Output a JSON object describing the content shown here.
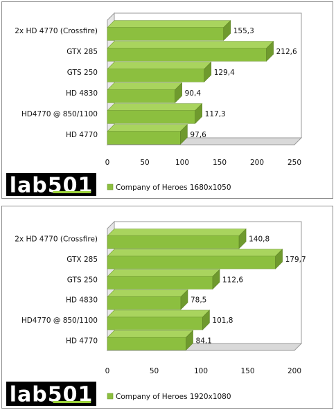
{
  "logo_text": "lab501",
  "chart_data": [
    {
      "type": "bar",
      "orientation": "horizontal",
      "categories": [
        "2x HD 4770 (Crossfire)",
        "GTX 285",
        "GTS 250",
        "HD 4830",
        "HD4770 @ 850/1100",
        "HD 4770"
      ],
      "series": [
        {
          "name": "Company of Heroes 1680x1050",
          "values": [
            155.3,
            212.6,
            129.4,
            90.4,
            117.3,
            97.6
          ],
          "value_labels": [
            "155,3",
            "212,6",
            "129,4",
            "90,4",
            "117,3",
            "97,6"
          ]
        }
      ],
      "xlim": [
        0,
        250
      ],
      "ticks": [
        0,
        50,
        100,
        150,
        200,
        250
      ],
      "grid": false,
      "legend_position": "bottom",
      "bar_color": "#8cbf3f"
    },
    {
      "type": "bar",
      "orientation": "horizontal",
      "categories": [
        "2x HD 4770 (Crossfire)",
        "GTX 285",
        "GTS 250",
        "HD 4830",
        "HD4770 @ 850/1100",
        "HD 4770"
      ],
      "series": [
        {
          "name": "Company of Heroes 1920x1080",
          "values": [
            140.8,
            179.7,
            112.6,
            78.5,
            101.8,
            84.1
          ],
          "value_labels": [
            "140,8",
            "179,7",
            "112,6",
            "78,5",
            "101,8",
            "84,1"
          ]
        }
      ],
      "xlim": [
        0,
        200
      ],
      "ticks": [
        0,
        50,
        100,
        150,
        200
      ],
      "grid": false,
      "legend_position": "bottom",
      "bar_color": "#8cbf3f"
    }
  ]
}
